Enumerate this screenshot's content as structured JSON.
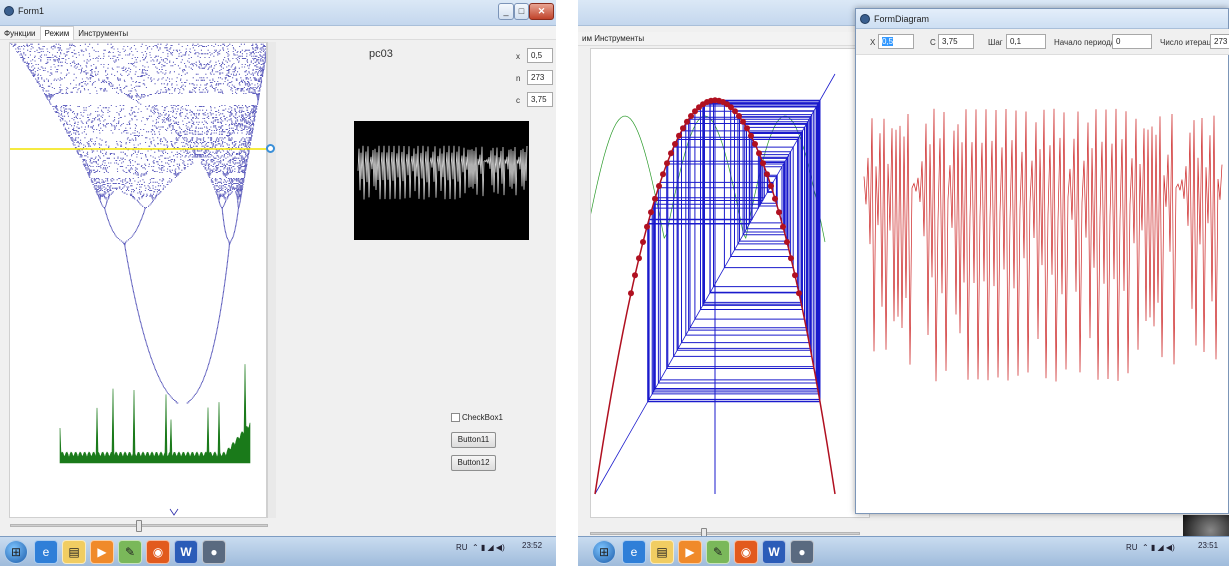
{
  "left": {
    "window_title": "Form1",
    "menu": [
      "Функции",
      "Режим",
      "Инструменты"
    ],
    "active_menu_index": 1,
    "label_pc": "pc03",
    "params": [
      {
        "label": "x",
        "value": "0,5"
      },
      {
        "label": "n",
        "value": "273"
      },
      {
        "label": "c",
        "value": "3,75"
      }
    ],
    "checkbox_label": "CheckBox1",
    "button1_label": "Button11",
    "button2_label": "Button12",
    "slider_position": 0.5,
    "tray_lang": "RU",
    "clock_time": "23:52"
  },
  "right": {
    "menu_tail": "им  Инструменты",
    "slider_position": 0.42,
    "tray_lang": "RU",
    "clock_time": "23:51",
    "dialog": {
      "title": "FormDiagram",
      "x_label": "X",
      "x_value": "0,5",
      "c_label": "C",
      "c_value": "3,75",
      "step_label": "Шаг",
      "step_value": "0,1",
      "start_label": "Начало периода",
      "start_value": "0",
      "iter_label": "Число итераций",
      "iter_value": "273"
    }
  },
  "taskbar_icons": [
    "windows-start-icon",
    "internet-explorer-icon",
    "file-explorer-icon",
    "media-player-icon",
    "paint-icon",
    "firefox-icon",
    "word-icon",
    "app-icon"
  ],
  "colors": {
    "bifurcation": "#2a2aa8",
    "spectrum": "#1a7a1a",
    "cursor_line": "#f2e400",
    "cobweb": "#1a1acc",
    "parabola_points": "#b01020",
    "series_red": "#c22",
    "side_curves": "#2a9a2a"
  }
}
